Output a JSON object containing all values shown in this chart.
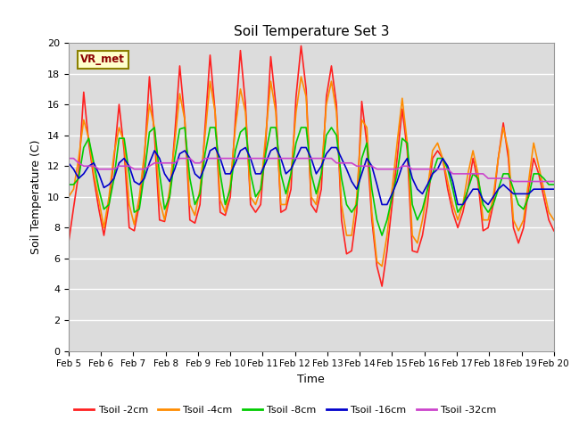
{
  "title": "Soil Temperature Set 3",
  "xlabel": "Time",
  "ylabel": "Soil Temperature (C)",
  "ylim": [
    0,
    20
  ],
  "xlim": [
    0,
    15
  ],
  "plot_bg": "#dcdcdc",
  "annotation_text": "VR_met",
  "annotation_bg": "#ffffcc",
  "annotation_border": "#8B8000",
  "series_colors": {
    "Tsoil -2cm": "#ff2020",
    "Tsoil -4cm": "#ff8c00",
    "Tsoil -8cm": "#00cc00",
    "Tsoil -16cm": "#0000cc",
    "Tsoil -32cm": "#cc44cc"
  },
  "tick_labels": [
    "Feb 5",
    "Feb 6",
    "Feb 7",
    "Feb 8",
    "Feb 9",
    "Feb 10",
    "Feb 11",
    "Feb 12",
    "Feb 13",
    "Feb 14",
    "Feb 15",
    "Feb 16",
    "Feb 17",
    "Feb 18",
    "Feb 19",
    "Feb 20"
  ],
  "t2cm": [
    7.0,
    9.3,
    11.5,
    16.8,
    13.5,
    11.2,
    9.2,
    7.5,
    9.5,
    12.5,
    16.0,
    13.0,
    8.0,
    7.8,
    9.5,
    12.5,
    17.8,
    14.0,
    8.5,
    8.4,
    10.0,
    14.0,
    18.5,
    15.0,
    8.5,
    8.3,
    9.5,
    14.5,
    19.2,
    15.5,
    9.0,
    8.8,
    10.0,
    15.0,
    19.5,
    16.0,
    9.5,
    9.0,
    9.5,
    13.5,
    19.1,
    16.0,
    9.0,
    9.2,
    10.5,
    16.5,
    19.8,
    17.0,
    9.5,
    9.0,
    10.5,
    16.5,
    18.5,
    16.0,
    8.5,
    6.3,
    6.5,
    9.0,
    16.2,
    13.5,
    8.5,
    5.5,
    4.2,
    6.5,
    9.5,
    12.5,
    15.7,
    13.0,
    6.5,
    6.4,
    7.5,
    9.5,
    12.5,
    13.0,
    12.5,
    10.5,
    9.0,
    8.0,
    9.0,
    10.5,
    12.5,
    11.0,
    7.8,
    8.0,
    9.5,
    12.5,
    14.8,
    12.5,
    8.0,
    7.0,
    8.0,
    10.5,
    12.5,
    11.5,
    10.0,
    8.5,
    7.8
  ],
  "t4cm": [
    10.0,
    10.5,
    12.5,
    15.0,
    13.8,
    11.5,
    9.8,
    8.0,
    10.0,
    12.8,
    14.5,
    13.5,
    9.5,
    8.2,
    10.0,
    12.8,
    16.0,
    14.5,
    9.8,
    8.5,
    10.5,
    13.5,
    16.7,
    15.0,
    9.5,
    8.8,
    10.5,
    14.0,
    17.5,
    15.5,
    9.8,
    9.0,
    10.8,
    14.5,
    17.0,
    15.5,
    10.0,
    9.5,
    10.5,
    14.0,
    17.5,
    15.5,
    9.5,
    9.5,
    11.5,
    15.5,
    17.8,
    16.5,
    10.0,
    9.5,
    11.5,
    16.0,
    17.5,
    15.5,
    9.5,
    7.5,
    7.5,
    10.0,
    15.0,
    14.5,
    9.0,
    5.8,
    5.5,
    7.5,
    10.5,
    13.5,
    16.4,
    13.5,
    7.5,
    7.0,
    8.5,
    10.5,
    13.0,
    13.5,
    12.5,
    11.0,
    9.5,
    8.5,
    9.5,
    11.5,
    13.0,
    11.5,
    8.5,
    8.5,
    10.0,
    12.5,
    14.5,
    13.0,
    8.5,
    7.8,
    8.5,
    11.0,
    13.5,
    12.0,
    10.5,
    9.0,
    8.5
  ],
  "t8cm": [
    10.8,
    10.8,
    11.2,
    13.2,
    13.8,
    12.2,
    10.5,
    9.2,
    9.5,
    11.2,
    13.8,
    13.8,
    11.5,
    9.0,
    9.2,
    11.5,
    14.2,
    14.5,
    11.5,
    9.2,
    10.0,
    12.5,
    14.4,
    14.5,
    11.2,
    9.5,
    10.2,
    12.8,
    14.5,
    14.5,
    11.5,
    9.5,
    10.5,
    13.0,
    14.2,
    14.5,
    11.5,
    10.0,
    10.5,
    12.8,
    14.5,
    14.5,
    11.5,
    10.2,
    11.5,
    13.5,
    14.5,
    14.5,
    11.5,
    10.2,
    11.5,
    14.0,
    14.5,
    14.0,
    11.2,
    9.5,
    9.0,
    9.5,
    12.5,
    13.5,
    10.5,
    8.5,
    7.5,
    8.5,
    10.0,
    11.5,
    13.8,
    13.5,
    9.5,
    8.5,
    9.2,
    10.5,
    11.5,
    12.5,
    12.5,
    11.8,
    10.5,
    9.0,
    9.5,
    10.5,
    11.5,
    11.2,
    9.5,
    9.0,
    9.5,
    10.5,
    11.5,
    11.5,
    10.5,
    9.5,
    9.2,
    10.0,
    11.5,
    11.5,
    11.2,
    10.8,
    10.8
  ],
  "t16cm": [
    12.2,
    11.8,
    11.2,
    11.5,
    12.0,
    12.2,
    11.5,
    10.6,
    10.8,
    11.2,
    12.2,
    12.5,
    12.0,
    11.0,
    10.8,
    11.2,
    12.2,
    13.0,
    12.5,
    11.5,
    11.0,
    11.8,
    12.8,
    13.0,
    12.5,
    11.5,
    11.2,
    12.0,
    13.0,
    13.2,
    12.5,
    11.5,
    11.5,
    12.2,
    13.0,
    13.2,
    12.5,
    11.5,
    11.5,
    12.2,
    13.0,
    13.2,
    12.5,
    11.5,
    11.8,
    12.5,
    13.2,
    13.2,
    12.5,
    11.5,
    12.0,
    12.8,
    13.2,
    13.2,
    12.5,
    11.8,
    11.0,
    10.5,
    11.5,
    12.5,
    12.0,
    10.8,
    9.5,
    9.5,
    10.2,
    11.0,
    12.0,
    12.5,
    11.2,
    10.5,
    10.2,
    10.8,
    11.5,
    11.8,
    12.5,
    12.0,
    11.0,
    9.5,
    9.5,
    10.0,
    10.5,
    10.5,
    9.8,
    9.5,
    10.0,
    10.5,
    10.8,
    10.5,
    10.2,
    10.2,
    10.2,
    10.2,
    10.5,
    10.5,
    10.5,
    10.5,
    10.5
  ],
  "t32cm": [
    12.5,
    12.5,
    12.2,
    12.0,
    12.0,
    12.0,
    11.8,
    11.8,
    11.8,
    11.8,
    12.0,
    12.0,
    12.0,
    11.8,
    11.8,
    11.8,
    12.0,
    12.2,
    12.2,
    12.2,
    12.2,
    12.2,
    12.5,
    12.5,
    12.5,
    12.2,
    12.2,
    12.5,
    12.5,
    12.5,
    12.5,
    12.5,
    12.5,
    12.5,
    12.5,
    12.5,
    12.5,
    12.5,
    12.5,
    12.5,
    12.5,
    12.5,
    12.5,
    12.5,
    12.5,
    12.5,
    12.5,
    12.5,
    12.5,
    12.5,
    12.5,
    12.5,
    12.5,
    12.2,
    12.2,
    12.2,
    12.2,
    12.0,
    12.0,
    12.0,
    12.0,
    11.8,
    11.8,
    11.8,
    11.8,
    11.8,
    12.0,
    12.0,
    11.8,
    11.8,
    11.8,
    11.8,
    11.8,
    11.8,
    11.8,
    11.8,
    11.5,
    11.5,
    11.5,
    11.5,
    11.5,
    11.5,
    11.5,
    11.2,
    11.2,
    11.2,
    11.2,
    11.2,
    11.0,
    11.0,
    11.0,
    11.0,
    11.0,
    11.0,
    11.0,
    11.0,
    11.0
  ]
}
